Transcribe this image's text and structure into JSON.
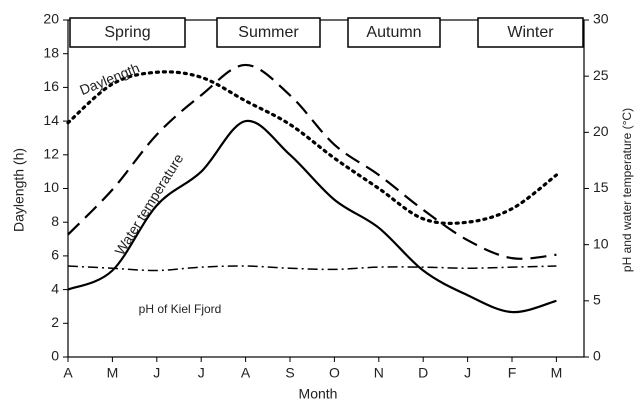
{
  "chart_data": {
    "type": "line",
    "xlabel": "Month",
    "ylabel": "Daylength (h)",
    "y2label": "pH and water temperature (°C)",
    "categories": [
      "A",
      "M",
      "J",
      "J",
      "A",
      "S",
      "O",
      "N",
      "D",
      "J",
      "F",
      "M"
    ],
    "series": [
      {
        "name": "Daylength",
        "color": "#000000",
        "dash": "dotted",
        "axis": "y",
        "values": [
          13.9,
          16.2,
          16.9,
          16.6,
          15.2,
          13.8,
          11.8,
          10.0,
          8.2,
          8.0,
          8.8,
          10.8
        ]
      },
      {
        "name": "Water temperature",
        "color": "#000000",
        "dash": "solid",
        "axis": "y2",
        "values": [
          6.0,
          7.7,
          13.5,
          16.5,
          21.0,
          18.0,
          14.0,
          11.5,
          7.7,
          5.5,
          4.0,
          5.0
        ]
      },
      {
        "color": "#000000",
        "dash": "dashed",
        "axis": "y2",
        "values": [
          10.9,
          14.9,
          19.8,
          23.3,
          26.0,
          23.3,
          18.9,
          16.2,
          13.1,
          10.4,
          8.8,
          9.1
        ]
      },
      {
        "name": "pH of Kiel Fjord",
        "color": "#000000",
        "dash": "dashdot",
        "axis": "y2",
        "values": [
          8.1,
          7.9,
          7.7,
          8.0,
          8.1,
          7.9,
          7.8,
          8.0,
          8.0,
          7.9,
          8.0,
          8.1
        ]
      }
    ],
    "seasons": [
      "Spring",
      "Summer",
      "Autumn",
      "Winter"
    ],
    "ylim": [
      0,
      20
    ],
    "yticks": [
      0,
      2,
      4,
      6,
      8,
      10,
      12,
      14,
      16,
      18,
      20
    ],
    "y2lim": [
      0,
      30
    ],
    "y2ticks": [
      0,
      5,
      10,
      15,
      20,
      25,
      30
    ],
    "grid": false
  }
}
